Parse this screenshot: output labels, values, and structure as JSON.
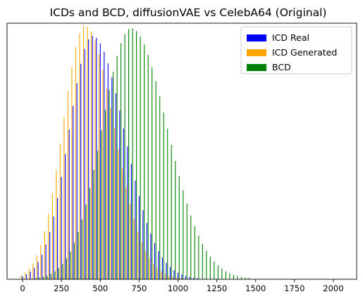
{
  "chart_data": {
    "type": "bar",
    "title": "ICDs and BCD, diffusionVAE vs CelebA64 (Original)",
    "xlabel": "",
    "ylabel": "",
    "xlim": [
      -100,
      2150
    ],
    "ylim": [
      0,
      1.0
    ],
    "y_ticks_shown": false,
    "grid": false,
    "legend_position": "top-right",
    "x_ticks": [
      0,
      250,
      500,
      750,
      1000,
      1250,
      1500,
      1750,
      2000
    ],
    "x_tick_labels": [
      "0",
      "250",
      "500",
      "750",
      "1000",
      "1250",
      "1500",
      "1750",
      "2000"
    ],
    "bin_step": 25,
    "series": [
      {
        "name": "ICD Real",
        "color": "#0000ff",
        "offset": 0,
        "peak_x": 450,
        "spread_left": 245,
        "spread_right": 330,
        "peak": 0.95,
        "x_start": 0,
        "x_end": 1525
      },
      {
        "name": "ICD Generated",
        "color": "#ffa500",
        "offset": -8,
        "peak_x": 410,
        "spread_left": 230,
        "spread_right": 300,
        "peak": 0.99,
        "x_start": 0,
        "x_end": 1450
      },
      {
        "name": "BCD",
        "color": "#008000",
        "offset": 8,
        "peak_x": 690,
        "spread_left": 300,
        "spread_right": 375,
        "peak": 0.98,
        "x_start": 0,
        "x_end": 1775
      }
    ]
  }
}
